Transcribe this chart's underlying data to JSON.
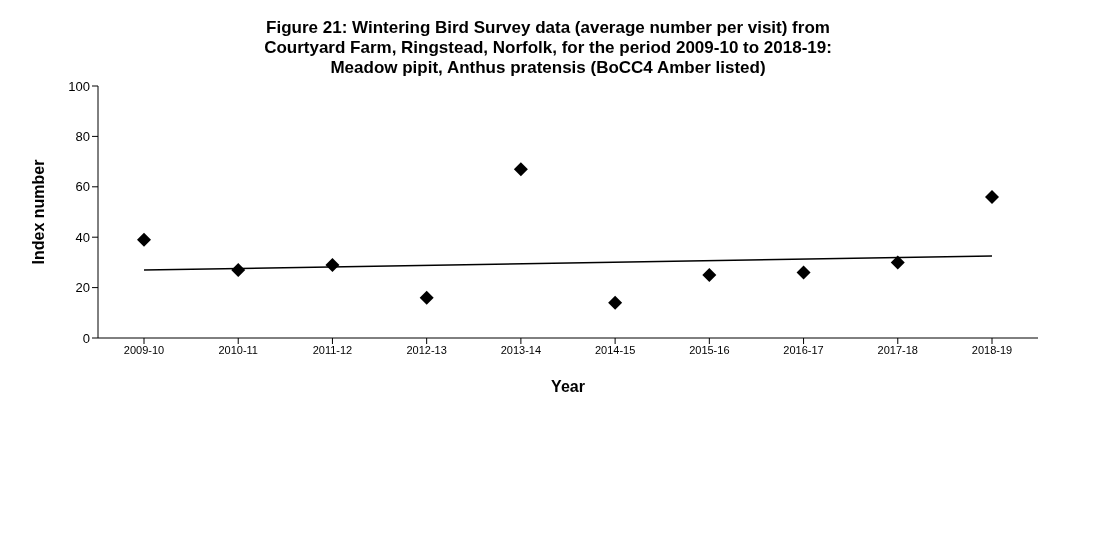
{
  "chart_data": {
    "type": "scatter",
    "title": "Figure 21: Wintering Bird Survey data (average number per visit) from Courtyard Farm, Ringstead, Norfolk, for the period 2009-10 to 2018-19: Meadow pipit, Anthus pratensis (BoCC4 Amber listed)",
    "xlabel": "Year",
    "ylabel": "Index number",
    "categories": [
      "2009-10",
      "2010-11",
      "2011-12",
      "2012-13",
      "2013-14",
      "2014-15",
      "2015-16",
      "2016-17",
      "2017-18",
      "2018-19"
    ],
    "series": [
      {
        "color": "#000000",
        "marker": "diamond",
        "values": [
          39,
          27,
          29,
          16,
          67,
          14,
          25,
          26,
          30,
          56
        ]
      },
      {
        "type": "line",
        "color": "#000000",
        "values": [
          27,
          null,
          null,
          null,
          null,
          null,
          null,
          null,
          null,
          32.5
        ]
      }
    ],
    "ylim": [
      0,
      100
    ],
    "yticks": [
      0,
      20,
      40,
      60,
      80,
      100
    ],
    "grid": false
  }
}
